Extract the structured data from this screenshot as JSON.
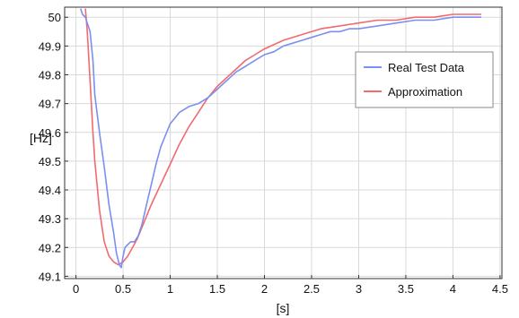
{
  "chart_data": {
    "type": "line",
    "xlabel": "[s]",
    "ylabel": "[Hz]",
    "xlim": [
      -0.12,
      4.52
    ],
    "ylim": [
      49.092,
      50.035
    ],
    "x_ticks": [
      0,
      0.5,
      1,
      1.5,
      2,
      2.5,
      3,
      3.5,
      4,
      4.5
    ],
    "x_tick_labels": [
      "0",
      "0.5",
      "1",
      "1.5",
      "2",
      "2.5",
      "3",
      "3.5",
      "4",
      "4.5"
    ],
    "y_ticks": [
      49.1,
      49.2,
      49.3,
      49.4,
      49.5,
      49.6,
      49.7,
      49.8,
      49.9,
      50.0
    ],
    "y_tick_labels": [
      "49.1",
      "49.2",
      "49.3",
      "49.4",
      "49.5",
      "49.6",
      "49.7",
      "49.8",
      "49.9",
      "50"
    ],
    "grid": true,
    "legend_position": "top-right",
    "series": [
      {
        "name": "Real Test Data",
        "color": "#7a8ff0",
        "x": [
          0.05,
          0.07,
          0.1,
          0.12,
          0.15,
          0.18,
          0.2,
          0.25,
          0.3,
          0.35,
          0.4,
          0.43,
          0.46,
          0.48,
          0.5,
          0.52,
          0.55,
          0.58,
          0.62,
          0.66,
          0.7,
          0.75,
          0.8,
          0.85,
          0.9,
          0.95,
          1.0,
          1.05,
          1.1,
          1.2,
          1.3,
          1.4,
          1.5,
          1.6,
          1.7,
          1.8,
          1.9,
          2.0,
          2.1,
          2.2,
          2.3,
          2.4,
          2.5,
          2.6,
          2.7,
          2.8,
          2.9,
          3.0,
          3.2,
          3.4,
          3.6,
          3.8,
          4.0,
          4.2,
          4.3
        ],
        "y": [
          50.03,
          50.01,
          50.0,
          49.98,
          49.95,
          49.85,
          49.73,
          49.6,
          49.48,
          49.35,
          49.25,
          49.18,
          49.14,
          49.13,
          49.17,
          49.2,
          49.21,
          49.22,
          49.22,
          49.24,
          49.28,
          49.35,
          49.42,
          49.49,
          49.55,
          49.59,
          49.63,
          49.65,
          49.67,
          49.69,
          49.7,
          49.72,
          49.75,
          49.78,
          49.81,
          49.83,
          49.85,
          49.87,
          49.88,
          49.9,
          49.91,
          49.92,
          49.93,
          49.94,
          49.95,
          49.95,
          49.96,
          49.96,
          49.97,
          49.98,
          49.99,
          49.99,
          50.0,
          50.0,
          50.0
        ]
      },
      {
        "name": "Approximation",
        "color": "#f26a6e",
        "x": [
          0.1,
          0.12,
          0.15,
          0.18,
          0.2,
          0.25,
          0.3,
          0.35,
          0.4,
          0.45,
          0.5,
          0.55,
          0.6,
          0.65,
          0.7,
          0.8,
          0.9,
          1.0,
          1.1,
          1.2,
          1.3,
          1.4,
          1.5,
          1.6,
          1.7,
          1.8,
          1.9,
          2.0,
          2.2,
          2.4,
          2.6,
          2.8,
          3.0,
          3.2,
          3.4,
          3.6,
          3.8,
          4.0,
          4.2,
          4.3
        ],
        "y": [
          50.03,
          49.95,
          49.78,
          49.6,
          49.5,
          49.33,
          49.22,
          49.17,
          49.15,
          49.14,
          49.15,
          49.17,
          49.2,
          49.23,
          49.27,
          49.35,
          49.42,
          49.49,
          49.56,
          49.62,
          49.67,
          49.72,
          49.76,
          49.79,
          49.82,
          49.85,
          49.87,
          49.89,
          49.92,
          49.94,
          49.96,
          49.97,
          49.98,
          49.99,
          49.99,
          50.0,
          50.0,
          50.01,
          50.01,
          50.01
        ]
      }
    ]
  }
}
